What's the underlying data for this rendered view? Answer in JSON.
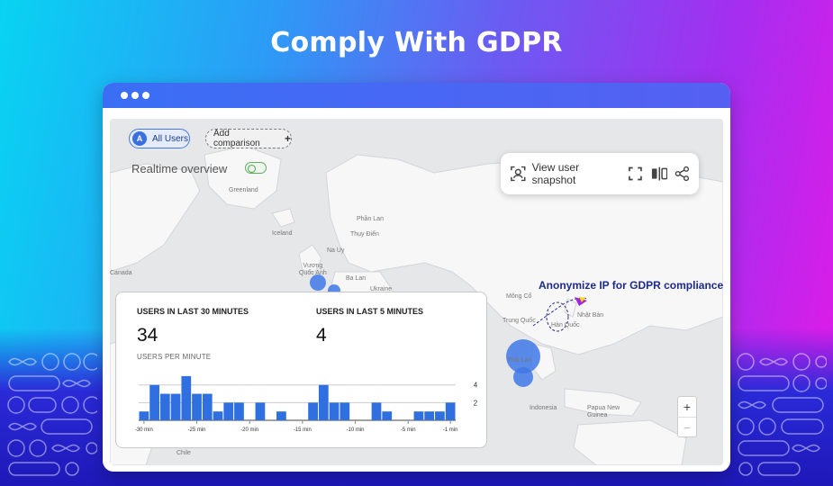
{
  "headline": "Comply With GDPR",
  "filters": {
    "all_users_badge": "A",
    "all_users_label": "All Users",
    "add_comparison_label": "Add comparison",
    "add_comparison_icon": "plus-icon"
  },
  "realtime_title": "Realtime overview",
  "snapshot": {
    "label": "View user snapshot",
    "icons": [
      "user-snapshot-icon",
      "fullscreen-icon",
      "compare-icon",
      "share-icon"
    ]
  },
  "annotation": "Anonymize IP for GDPR compliance",
  "map_labels": [
    {
      "id": "greenland",
      "text": "Greenland"
    },
    {
      "id": "iceland",
      "text": "Iceland"
    },
    {
      "id": "phan-lan",
      "text": "Phần Lan"
    },
    {
      "id": "thuy-dien",
      "text": "Thụy Điển"
    },
    {
      "id": "na-uy",
      "text": "Na Uy"
    },
    {
      "id": "vuong-quoc-anh",
      "text": "Vương\nQuốc Anh"
    },
    {
      "id": "ba-lan",
      "text": "Ba Lan"
    },
    {
      "id": "ukraine",
      "text": "Ukraine"
    },
    {
      "id": "mong-co",
      "text": "Mông Cổ"
    },
    {
      "id": "trung-quoc",
      "text": "Trung Quốc"
    },
    {
      "id": "nhat-ban",
      "text": "Nhật Bản"
    },
    {
      "id": "han-quoc",
      "text": "Hàn Quốc"
    },
    {
      "id": "thai-lan",
      "text": "Thái Lan"
    },
    {
      "id": "indonesia",
      "text": "Indonesia"
    },
    {
      "id": "papua",
      "text": "Papua New\nGuinea"
    },
    {
      "id": "canada",
      "text": "Canada"
    },
    {
      "id": "chile",
      "text": "Chile"
    }
  ],
  "zoom": {
    "in": "+",
    "out": "−"
  },
  "stats": {
    "users_30_label": "USERS IN LAST 30 MINUTES",
    "users_30_value": "34",
    "users_5_label": "USERS IN LAST 5 MINUTES",
    "users_5_value": "4",
    "per_minute_label": "USERS PER MINUTE"
  },
  "chart_data": {
    "type": "bar",
    "xlabel": "",
    "ylabel": "",
    "categories": [
      "-30",
      "-29",
      "-28",
      "-27",
      "-26",
      "-25",
      "-24",
      "-23",
      "-22",
      "-21",
      "-20",
      "-19",
      "-18",
      "-17",
      "-16",
      "-15",
      "-14",
      "-13",
      "-12",
      "-11",
      "-10",
      "-9",
      "-8",
      "-7",
      "-6",
      "-5",
      "-4",
      "-3",
      "-2",
      "-1"
    ],
    "values": [
      1,
      4,
      3,
      3,
      5,
      3,
      3,
      1,
      2,
      2,
      0,
      2,
      0,
      1,
      0,
      0,
      2,
      4,
      2,
      2,
      0,
      0,
      2,
      1,
      0,
      0,
      1,
      1,
      1,
      2
    ],
    "x_tick_labels": [
      "-30 min",
      "-25 min",
      "-20 min",
      "-15 min",
      "-10 min",
      "-5 min",
      "-1 min"
    ],
    "y_tick_labels": [
      "2",
      "4"
    ],
    "ylim": [
      0,
      5.5
    ]
  }
}
